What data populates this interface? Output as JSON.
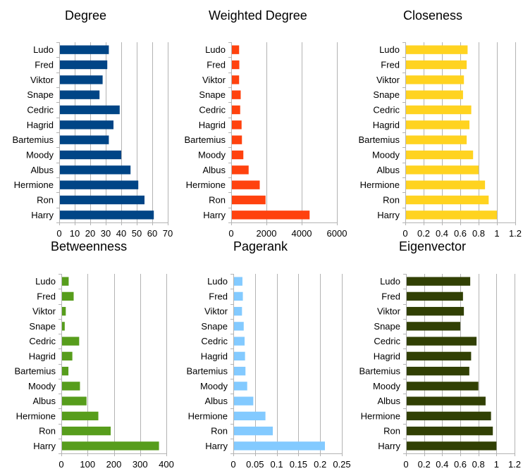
{
  "chart_data": [
    {
      "type": "bar",
      "orientation": "horizontal",
      "title": "Degree",
      "color": "#004586",
      "categories": [
        "Ludo",
        "Fred",
        "Viktor",
        "Snape",
        "Cedric",
        "Hagrid",
        "Bartemius",
        "Moody",
        "Albus",
        "Hermione",
        "Ron",
        "Harry"
      ],
      "values": [
        32,
        31,
        28,
        26,
        39,
        35,
        32,
        40,
        46,
        51,
        55,
        61
      ],
      "xlim": [
        0,
        70
      ],
      "xticks": [
        0,
        10,
        20,
        30,
        40,
        50,
        60,
        70
      ],
      "grid": true
    },
    {
      "type": "bar",
      "orientation": "horizontal",
      "title": "Weighted Degree",
      "color": "#ff420e",
      "categories": [
        "Ludo",
        "Fred",
        "Viktor",
        "Snape",
        "Cedric",
        "Hagrid",
        "Bartemius",
        "Moody",
        "Albus",
        "Hermione",
        "Ron",
        "Harry"
      ],
      "values": [
        450,
        460,
        450,
        540,
        510,
        590,
        610,
        690,
        990,
        1620,
        1950,
        4450
      ],
      "xlim": [
        0,
        6000
      ],
      "xticks": [
        0,
        2000,
        4000,
        6000
      ],
      "grid": true
    },
    {
      "type": "bar",
      "orientation": "horizontal",
      "title": "Closeness",
      "color": "#ffd320",
      "categories": [
        "Ludo",
        "Fred",
        "Viktor",
        "Snape",
        "Cedric",
        "Hagrid",
        "Bartemius",
        "Moody",
        "Albus",
        "Hermione",
        "Ron",
        "Harry"
      ],
      "values": [
        0.68,
        0.67,
        0.64,
        0.63,
        0.72,
        0.7,
        0.67,
        0.74,
        0.8,
        0.87,
        0.91,
        1.0
      ],
      "xlim": [
        0,
        1.2
      ],
      "xticks": [
        0,
        0.2,
        0.4,
        0.6,
        0.8,
        1,
        1.2
      ],
      "grid": true
    },
    {
      "type": "bar",
      "orientation": "horizontal",
      "title": "Betweenness",
      "color": "#579d1c",
      "categories": [
        "Ludo",
        "Fred",
        "Viktor",
        "Snape",
        "Cedric",
        "Hagrid",
        "Bartemius",
        "Moody",
        "Albus",
        "Hermione",
        "Ron",
        "Harry"
      ],
      "values": [
        28,
        47,
        17,
        13,
        68,
        42,
        27,
        71,
        96,
        141,
        188,
        372
      ],
      "xlim": [
        0,
        400
      ],
      "xticks": [
        0,
        100,
        200,
        300,
        400
      ],
      "grid": true
    },
    {
      "type": "bar",
      "orientation": "horizontal",
      "title": "Pagerank",
      "color": "#83caff",
      "categories": [
        "Ludo",
        "Fred",
        "Viktor",
        "Snape",
        "Cedric",
        "Hagrid",
        "Bartemius",
        "Moody",
        "Albus",
        "Hermione",
        "Ron",
        "Harry"
      ],
      "values": [
        0.021,
        0.022,
        0.02,
        0.024,
        0.026,
        0.027,
        0.028,
        0.032,
        0.046,
        0.074,
        0.091,
        0.211
      ],
      "xlim": [
        0,
        0.25
      ],
      "xticks": [
        0,
        0.05,
        0.1,
        0.15,
        0.2,
        0.25
      ],
      "grid": true
    },
    {
      "type": "bar",
      "orientation": "horizontal",
      "title": "Eigenvector",
      "color": "#314004",
      "categories": [
        "Ludo",
        "Fred",
        "Viktor",
        "Snape",
        "Cedric",
        "Hagrid",
        "Bartemius",
        "Moody",
        "Albus",
        "Hermione",
        "Ron",
        "Harry"
      ],
      "values": [
        0.71,
        0.63,
        0.64,
        0.6,
        0.78,
        0.72,
        0.7,
        0.8,
        0.88,
        0.94,
        0.96,
        1.0
      ],
      "xlim": [
        0,
        1.2
      ],
      "xticks": [
        0,
        0.2,
        0.4,
        0.6,
        0.8,
        1,
        1.2
      ],
      "grid": true
    }
  ]
}
